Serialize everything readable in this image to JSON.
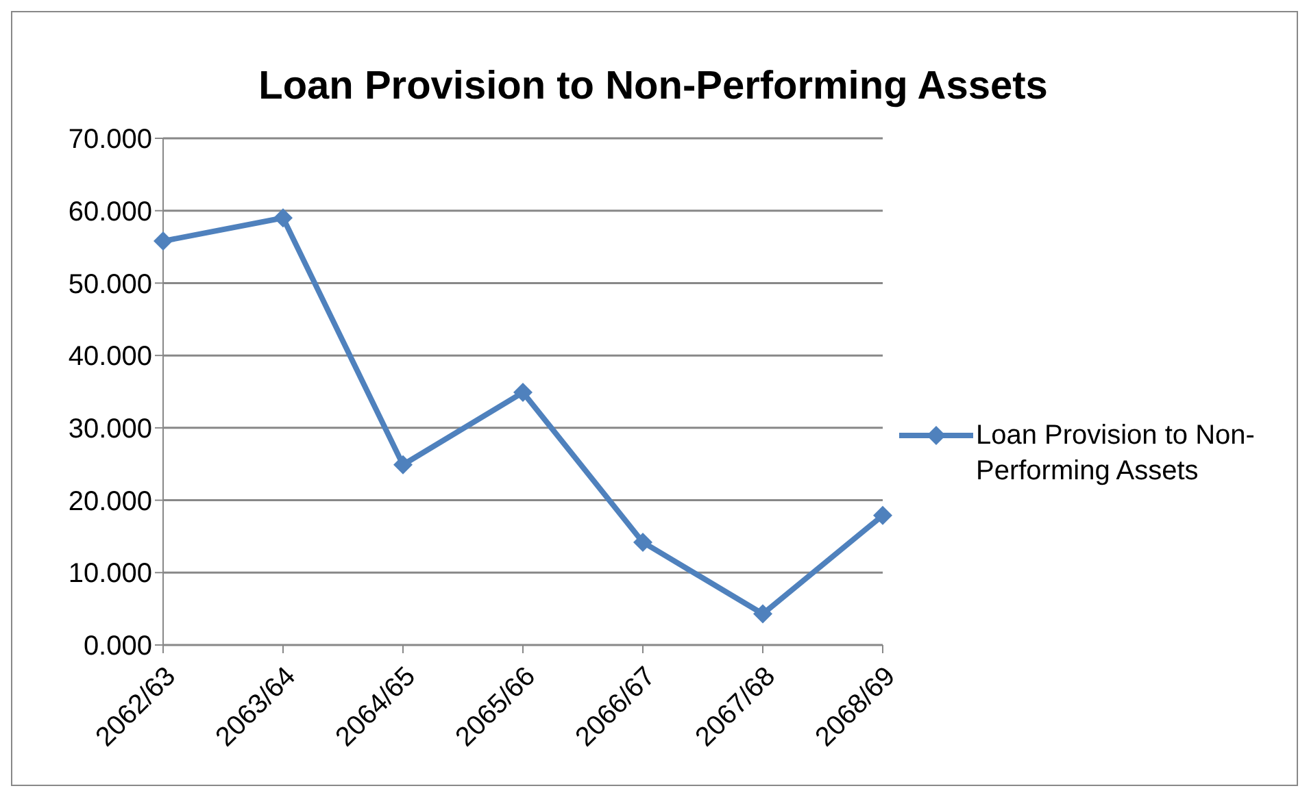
{
  "chart_data": {
    "type": "line",
    "title": "Loan Provision to Non-Performing Assets",
    "categories": [
      "2062/63",
      "2063/64",
      "2064/65",
      "2065/66",
      "2066/67",
      "2067/68",
      "2068/69"
    ],
    "series": [
      {
        "name": "Loan Provision to Non-Performing Assets",
        "color": "#4f81bd",
        "values": [
          55.8,
          59.0,
          24.9,
          34.9,
          14.2,
          4.3,
          17.9
        ]
      }
    ],
    "ylim": [
      0,
      70
    ],
    "yticks": [
      {
        "value": 0,
        "label": "0.000"
      },
      {
        "value": 10,
        "label": "10.000"
      },
      {
        "value": 20,
        "label": "20.000"
      },
      {
        "value": 30,
        "label": "30.000"
      },
      {
        "value": 40,
        "label": "40.000"
      },
      {
        "value": 50,
        "label": "50.000"
      },
      {
        "value": 60,
        "label": "60.000"
      },
      {
        "value": 70,
        "label": "70.000"
      }
    ],
    "grid": "y",
    "legend": "right",
    "marker": "diamond",
    "line_style": "solid"
  }
}
